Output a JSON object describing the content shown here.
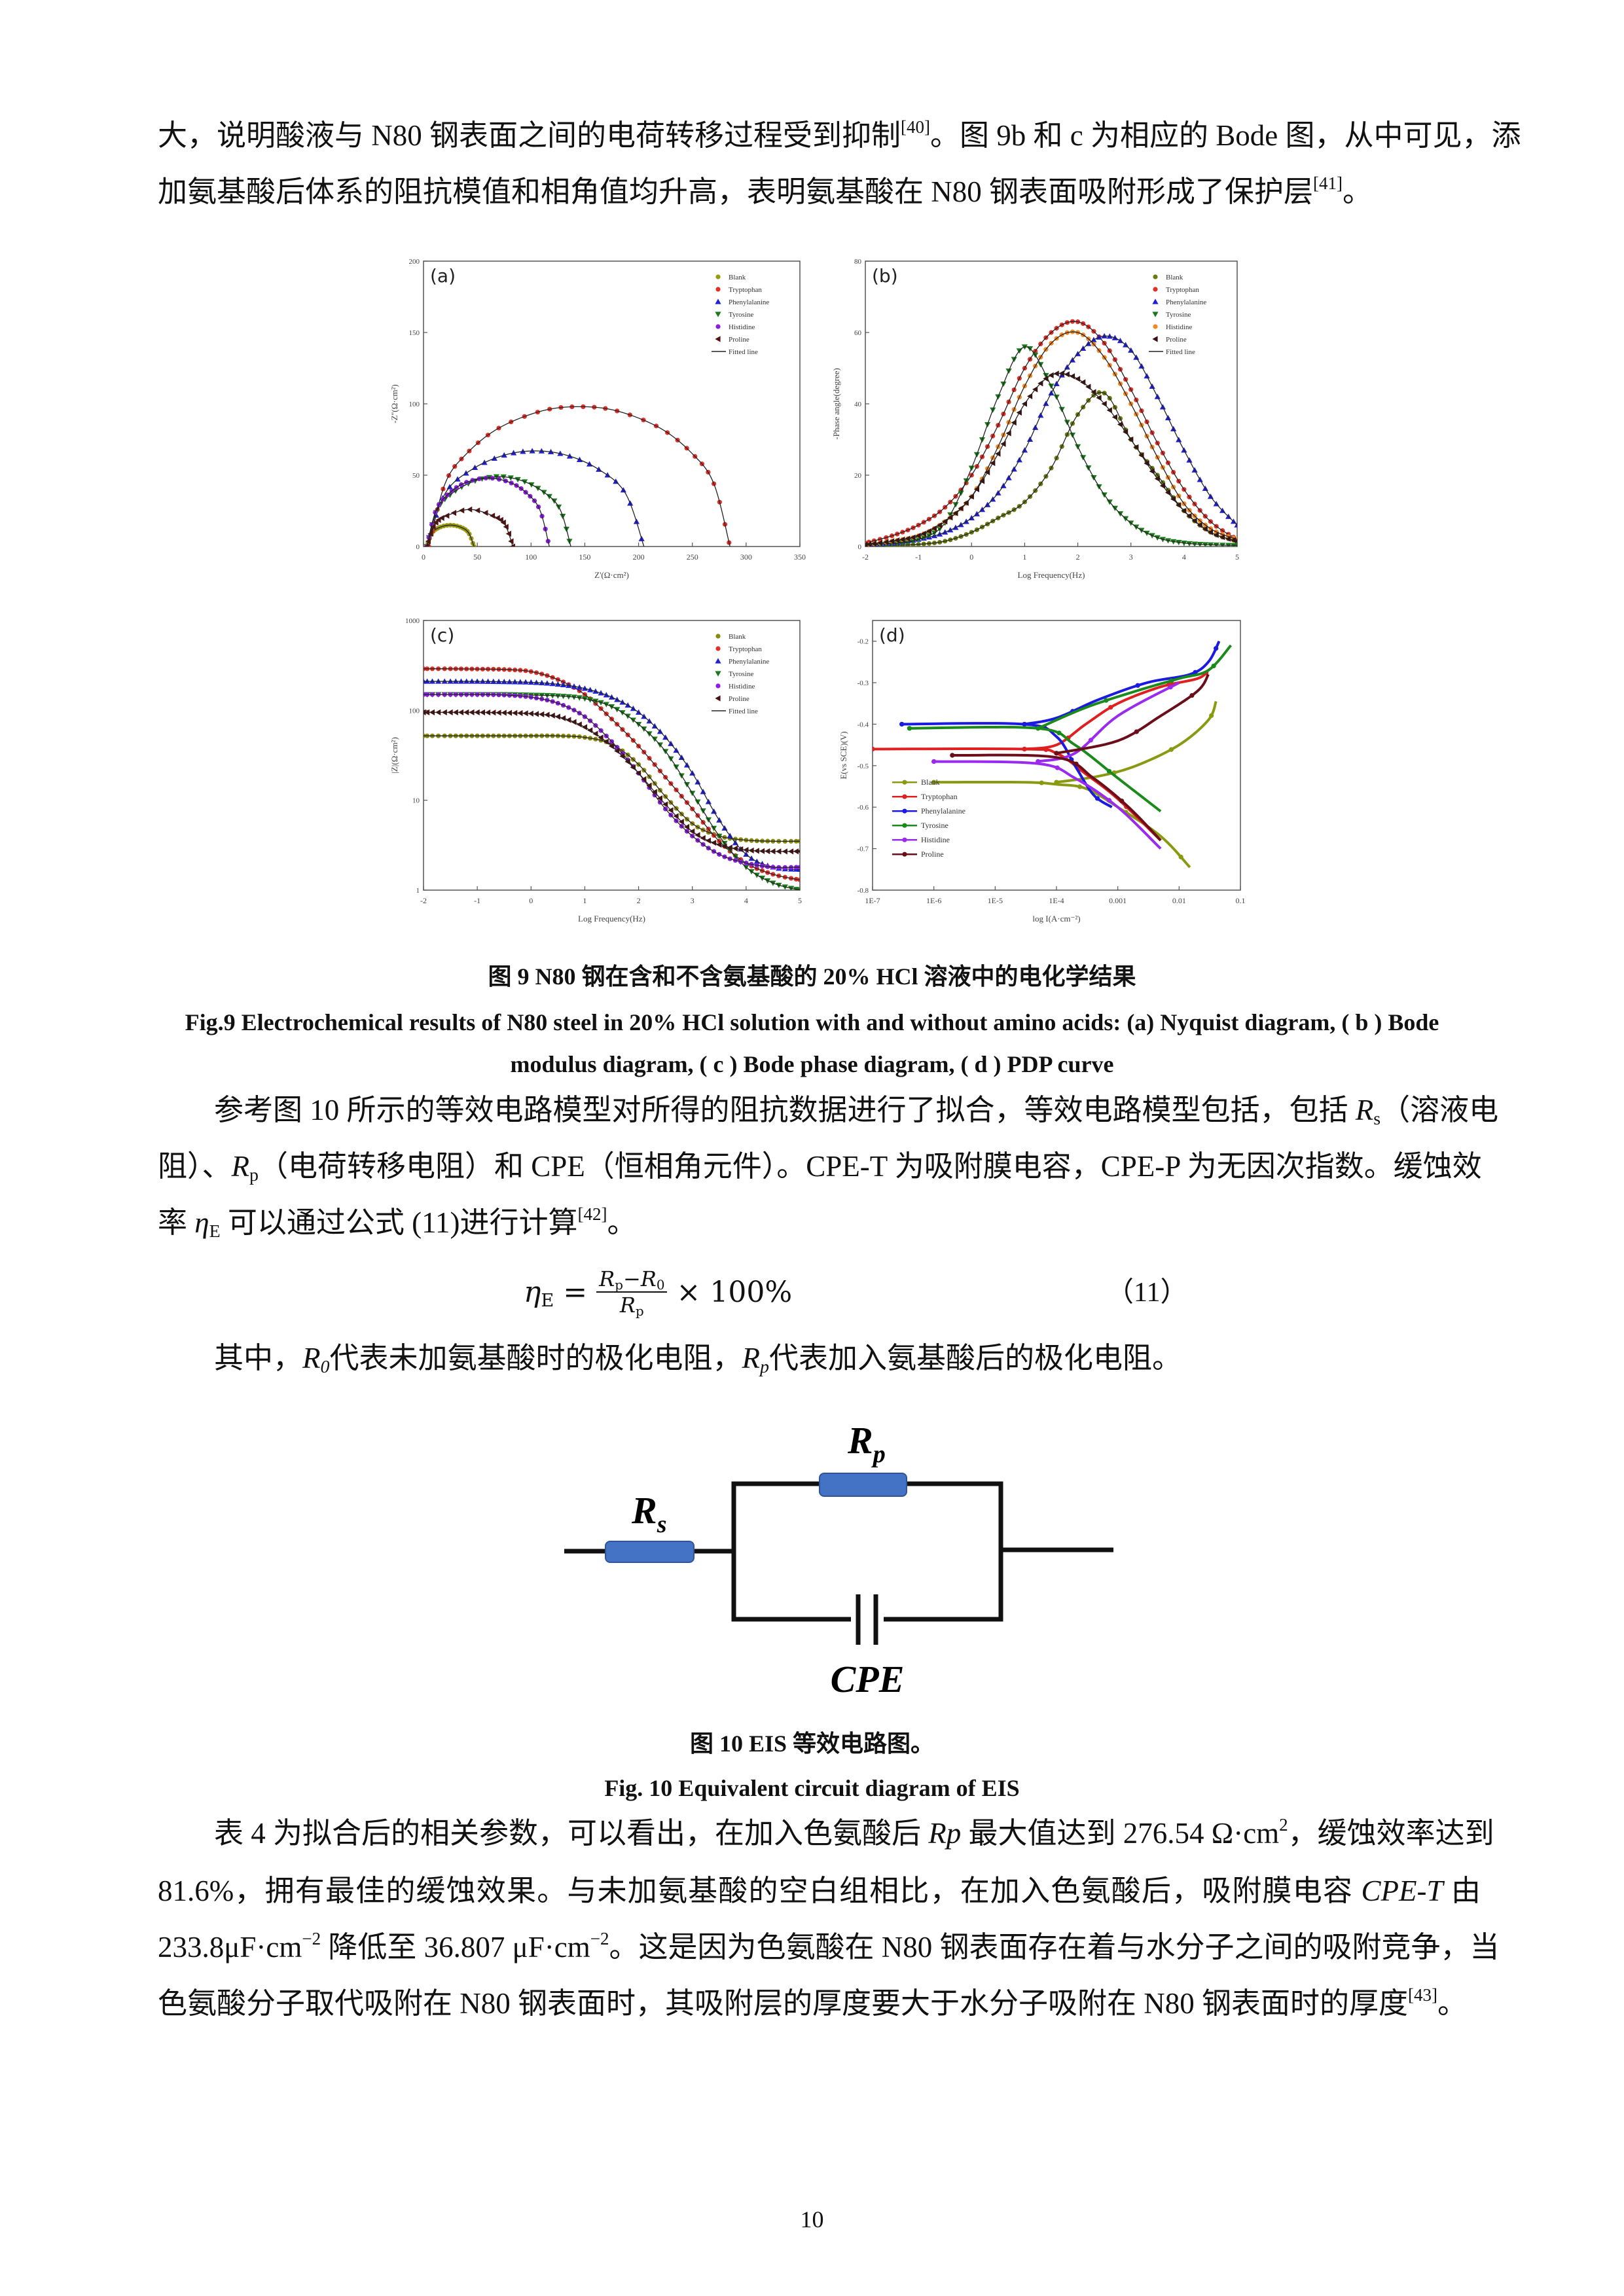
{
  "para1": {
    "l1": [
      "大，说明酸液与 N80 钢表面之间的电荷转移过程受到抑制",
      "[40]",
      "。图 9b 和 c 为相应的 Bode 图，从中可见，添"
    ],
    "l2": [
      "加氨基酸后体系的阻抗模值和相角值均升高，表明氨基酸在 N80 钢表面吸附形成了保护层",
      "[41]",
      "。"
    ]
  },
  "fig9": {
    "caption_cn": "图 9 N80 钢在含和不含氨基酸的 20% HCl 溶液中的电化学结果",
    "caption_en_1": "Fig.9 Electrochemical results of N80 steel in 20% HCl solution with and without amino acids: (a) Nyquist diagram, ( b ) Bode",
    "caption_en_2": "modulus diagram, ( c ) Bode phase diagram, ( d ) PDP curve"
  },
  "para2": {
    "l1": [
      "参考图 10 所示的等效电路模型对所得的阻抗数据进行了拟合，等效电路模型包括，包括 ",
      "R",
      "s",
      "（溶液电"
    ],
    "l2": [
      "阻）、",
      "R",
      "p",
      "（电荷转移电阻）和 CPE（恒相角元件）。CPE-T 为吸附膜电容，CPE-P 为无因次指数。缓蚀效"
    ],
    "l3": [
      "率 ",
      "η",
      "E",
      " 可以通过公式 (11)进行计算",
      "[42]",
      "。"
    ]
  },
  "equation": {
    "lhs": "η",
    "lhs_sub": "E",
    "eq": "=",
    "num_a": "R",
    "num_a_sub": "p",
    "minus": "−",
    "num_b": "R",
    "num_b_sub": "0",
    "den": "R",
    "den_sub": "p",
    "times": "× 100%",
    "number": "（11）"
  },
  "para3": [
    "其中，",
    "R",
    "0",
    "代表未加氨基酸时的极化电阻，",
    "R",
    "p",
    "代表加入氨基酸后的极化电阻。"
  ],
  "circuit": {
    "rs": "R",
    "rs_sub": "s",
    "rp": "R",
    "rp_sub": "p",
    "cpe": "CPE",
    "resistor_color": "#4472c4"
  },
  "fig10": {
    "caption_cn": "图 10 EIS 等效电路图。",
    "caption_en": "Fig. 10 Equivalent circuit diagram of EIS"
  },
  "para4": {
    "l1": [
      "表 4 为拟合后的相关参数，可以看出，在加入色氨酸后 ",
      "Rp",
      " 最大值达到 276.54 Ω·cm",
      "2",
      "，缓蚀效率达到"
    ],
    "l2": [
      "81.6%，拥有最佳的缓蚀效果。与未加氨基酸的空白组相比，在加入色氨酸后，吸附膜电容 ",
      "CPE-T",
      " 由"
    ],
    "l3": [
      "233.8μF·cm",
      "−2",
      " 降低至 36.807 μF·cm",
      "−2",
      "。这是因为色氨酸在 N80 钢表面存在着与水分子之间的吸附竞争，当"
    ],
    "l4": [
      "色氨酸分子取代吸附在 N80 钢表面时，其吸附层的厚度要大于水分子吸附在 N80 钢表面时的厚度",
      "[43]",
      "。"
    ]
  },
  "page_number": "10",
  "chart_data": [
    {
      "panel": "(a)",
      "type": "scatter",
      "xlabel": "Z'(Ω·cm²)",
      "ylabel": "-Z''(Ω·cm²)",
      "xlim": [
        0,
        350
      ],
      "ylim": [
        0,
        200
      ],
      "xscale": "linear",
      "yscale": "linear",
      "xticks": [
        0,
        50,
        100,
        150,
        200,
        250,
        300,
        350
      ],
      "xtick_labels": [
        "0",
        "50",
        "100",
        "150",
        "200",
        "250",
        "300",
        "350"
      ],
      "yticks": [
        0,
        50,
        100,
        150,
        200
      ],
      "ytick_labels": [
        "0",
        "50",
        "100",
        "150",
        "200"
      ],
      "legend_position": "top-right",
      "fit_label": "Fitted line",
      "series": [
        {
          "name": "Blank",
          "color": "#9a9a10",
          "points": [
            [
              3,
              0
            ],
            [
              8,
              9.5
            ],
            [
              15,
              13.4
            ],
            [
              25,
              15
            ],
            [
              35,
              13.4
            ],
            [
              42,
              9.5
            ],
            [
              47,
              0
            ]
          ]
        },
        {
          "name": "Tryptophan",
          "color": "#e0302a",
          "points": [
            [
              5,
              0
            ],
            [
              20,
              44
            ],
            [
              40,
              65
            ],
            [
              70,
              83
            ],
            [
              110,
              95
            ],
            [
              145,
              98
            ],
            [
              180,
              95
            ],
            [
              220,
              83
            ],
            [
              250,
              65
            ],
            [
              270,
              44
            ],
            [
              285,
              0
            ]
          ]
        },
        {
          "name": "Phenylalanine",
          "color": "#2020d8",
          "points": [
            [
              3,
              0
            ],
            [
              20,
              37
            ],
            [
              45,
              54
            ],
            [
              75,
              64
            ],
            [
              104,
              67
            ],
            [
              133,
              64
            ],
            [
              163,
              54
            ],
            [
              188,
              37
            ],
            [
              205,
              0
            ]
          ]
        },
        {
          "name": "Tyrosine",
          "color": "#1a7a1a",
          "points": [
            [
              3,
              0
            ],
            [
              13,
              26
            ],
            [
              28,
              38
            ],
            [
              48,
              46
            ],
            [
              70,
              49
            ],
            [
              92,
              46
            ],
            [
              112,
              38
            ],
            [
              127,
              26
            ],
            [
              137,
              0
            ]
          ]
        },
        {
          "name": "Histidine",
          "color": "#8a1ee0",
          "points": [
            [
              3,
              0
            ],
            [
              12,
              26
            ],
            [
              25,
              38
            ],
            [
              40,
              45
            ],
            [
              60,
              48
            ],
            [
              80,
              45
            ],
            [
              95,
              38
            ],
            [
              108,
              26
            ],
            [
              117,
              0
            ]
          ]
        },
        {
          "name": "Proline",
          "color": "#5a1010",
          "points": [
            [
              3,
              0
            ],
            [
              10,
              15
            ],
            [
              20,
              21
            ],
            [
              43,
              26
            ],
            [
              66,
              21
            ],
            [
              76,
              15
            ],
            [
              83,
              0
            ]
          ]
        }
      ]
    },
    {
      "panel": "(b)",
      "type": "scatter",
      "xlabel": "Log Frequency(Hz)",
      "ylabel": "-Phase angle(degree)",
      "xlim": [
        -2,
        5
      ],
      "ylim": [
        0,
        80
      ],
      "xscale": "linear",
      "yscale": "linear",
      "xticks": [
        -2,
        -1,
        0,
        1,
        2,
        3,
        4,
        5
      ],
      "xtick_labels": [
        "-2",
        "-1",
        "0",
        "1",
        "2",
        "3",
        "4",
        "5"
      ],
      "yticks": [
        0,
        20,
        40,
        60,
        80
      ],
      "ytick_labels": [
        "0",
        "20",
        "40",
        "60",
        "80"
      ],
      "legend_position": "top-right",
      "fit_label": "Fitted line",
      "x": [
        -2,
        -1.5,
        -1,
        -0.5,
        0,
        0.5,
        1,
        1.5,
        2,
        2.5,
        3,
        3.5,
        4,
        4.5,
        5
      ],
      "series": [
        {
          "name": "Blank",
          "color": "#6b7a10",
          "values": [
            0,
            0.3,
            0.6,
            1.5,
            4,
            8,
            12.5,
            22,
            37,
            43,
            30,
            20,
            10,
            4,
            1.5
          ]
        },
        {
          "name": "Tryptophan",
          "color": "#e0302a",
          "values": [
            1,
            3,
            6,
            11,
            20,
            34,
            50,
            60,
            63,
            57,
            44,
            29,
            16,
            7,
            2
          ]
        },
        {
          "name": "Phenylalanine",
          "color": "#2020d8",
          "values": [
            0.5,
            1,
            2,
            4,
            8,
            15,
            27,
            43,
            54,
            59,
            55,
            42,
            27,
            14,
            6
          ]
        },
        {
          "name": "Tyrosine",
          "color": "#1a7a1a",
          "values": [
            0.3,
            0.8,
            2,
            6.6,
            22,
            42,
            56,
            45,
            28,
            14.5,
            6.6,
            2.5,
            1,
            0.5,
            0.3
          ]
        },
        {
          "name": "Histidine",
          "color": "#f08a20",
          "values": [
            0.5,
            1.5,
            3,
            7,
            14,
            28,
            45,
            57,
            60,
            53,
            40,
            25,
            12,
            5,
            2
          ]
        },
        {
          "name": "Proline",
          "color": "#3a1010",
          "values": [
            0.5,
            1.5,
            3,
            7,
            14,
            26,
            40,
            48,
            47,
            40,
            30,
            19,
            10,
            4,
            1.5
          ]
        }
      ]
    },
    {
      "panel": "(c)",
      "type": "scatter",
      "xlabel": "Log Frequency(Hz)",
      "ylabel": "|Z|(Ω·cm²)",
      "xlim": [
        -2,
        5
      ],
      "ylim": [
        1,
        1000
      ],
      "xscale": "linear",
      "yscale": "log",
      "xticks": [
        -2,
        -1,
        0,
        1,
        2,
        3,
        4,
        5
      ],
      "xtick_labels": [
        "-2",
        "-1",
        "0",
        "1",
        "2",
        "3",
        "4",
        "5"
      ],
      "yticks": [
        1,
        10,
        100,
        1000
      ],
      "ytick_labels": [
        "1",
        "10",
        "100",
        "1000"
      ],
      "legend_position": "top-right",
      "fit_label": "Fitted line",
      "x": [
        -2,
        -1.5,
        -1,
        -0.5,
        0,
        0.5,
        1,
        1.5,
        2,
        2.5,
        3,
        3.5,
        4,
        4.5,
        5
      ],
      "series": [
        {
          "name": "Blank",
          "color": "#8a8a10",
          "values": [
            52,
            52,
            52,
            52,
            52,
            52,
            50,
            42,
            25,
            11,
            5.5,
            4,
            3.6,
            3.5,
            3.5
          ]
        },
        {
          "name": "Tryptophan",
          "color": "#e0302a",
          "values": [
            290,
            290,
            288,
            285,
            270,
            220,
            150,
            80,
            40,
            18,
            8,
            3.5,
            2,
            1.5,
            1.3
          ]
        },
        {
          "name": "Phenylalanine",
          "color": "#2020d8",
          "values": [
            210,
            210,
            210,
            208,
            205,
            195,
            175,
            140,
            95,
            50,
            20,
            6,
            2.5,
            1.8,
            1.7
          ]
        },
        {
          "name": "Tyrosine",
          "color": "#1a7a1a",
          "values": [
            150,
            150,
            150,
            150,
            148,
            145,
            135,
            110,
            70,
            35,
            12,
            4,
            1.8,
            1.2,
            1.0
          ]
        },
        {
          "name": "Histidine",
          "color": "#8a1ee0",
          "values": [
            150,
            150,
            150,
            148,
            140,
            120,
            85,
            45,
            20,
            8,
            4,
            2.5,
            2,
            1.8,
            1.8
          ]
        },
        {
          "name": "Proline",
          "color": "#4a1010",
          "values": [
            95,
            95,
            95,
            94,
            92,
            85,
            65,
            40,
            20,
            9,
            4.5,
            3.2,
            2.8,
            2.7,
            2.7
          ]
        }
      ]
    },
    {
      "panel": "(d)",
      "type": "line",
      "xlabel": "log I(A·cm⁻²)",
      "ylabel": "E(vs SCE)(V)",
      "xlim": [
        1e-07,
        0.1
      ],
      "ylim": [
        -0.8,
        -0.15
      ],
      "xscale": "log",
      "yscale": "linear",
      "xticks": [
        1e-07,
        1e-06,
        1e-05,
        0.0001,
        0.001,
        0.01,
        0.1
      ],
      "xtick_labels": [
        "1E-7",
        "1E-6",
        "1E-5",
        "1E-4",
        "0.001",
        "0.01",
        "0.1"
      ],
      "yticks": [
        -0.8,
        -0.7,
        -0.6,
        -0.5,
        -0.4,
        -0.3,
        -0.2
      ],
      "ytick_labels": [
        "-0.8",
        "-0.7",
        "-0.6",
        "-0.5",
        "-0.4",
        "-0.3",
        "-0.2"
      ],
      "legend_position": "bottom-left",
      "series": [
        {
          "name": "Blank",
          "color": "#8a9a10",
          "cathodic": [
            [
              1e-06,
              -0.54
            ],
            [
              3e-05,
              -0.54
            ],
            [
              0.0001,
              -0.545
            ],
            [
              0.0003,
              -0.555
            ],
            [
              0.001,
              -0.6
            ],
            [
              0.005,
              -0.67
            ],
            [
              0.015,
              -0.745
            ]
          ],
          "anodic": [
            [
              0.0001,
              -0.54
            ],
            [
              0.0005,
              -0.525
            ],
            [
              0.002,
              -0.5
            ],
            [
              0.01,
              -0.45
            ],
            [
              0.03,
              -0.39
            ],
            [
              0.04,
              -0.345
            ]
          ]
        },
        {
          "name": "Tryptophan",
          "color": "#e02020",
          "cathodic": [
            [
              1e-07,
              -0.46
            ],
            [
              3e-05,
              -0.46
            ],
            [
              0.0001,
              -0.47
            ],
            [
              0.0003,
              -0.52
            ],
            [
              0.001,
              -0.58
            ],
            [
              0.005,
              -0.68
            ]
          ],
          "anodic": [
            [
              3e-05,
              -0.46
            ],
            [
              0.0001,
              -0.45
            ],
            [
              0.0003,
              -0.4
            ],
            [
              0.001,
              -0.35
            ],
            [
              0.005,
              -0.31
            ],
            [
              0.02,
              -0.29
            ],
            [
              0.03,
              -0.27
            ]
          ]
        },
        {
          "name": "Phenylalanine",
          "color": "#1a1ae0",
          "cathodic": [
            [
              3e-07,
              -0.4
            ],
            [
              3e-05,
              -0.4
            ],
            [
              0.0001,
              -0.43
            ],
            [
              0.0002,
              -0.5
            ],
            [
              0.0004,
              -0.57
            ],
            [
              0.0008,
              -0.6
            ]
          ],
          "anodic": [
            [
              3e-05,
              -0.4
            ],
            [
              0.0001,
              -0.385
            ],
            [
              0.0005,
              -0.34
            ],
            [
              0.003,
              -0.3
            ],
            [
              0.015,
              -0.28
            ],
            [
              0.03,
              -0.25
            ],
            [
              0.045,
              -0.2
            ]
          ]
        },
        {
          "name": "Tyrosine",
          "color": "#1a8a1a",
          "cathodic": [
            [
              4e-07,
              -0.41
            ],
            [
              5e-05,
              -0.41
            ],
            [
              0.0002,
              -0.45
            ],
            [
              0.001,
              -0.53
            ],
            [
              0.005,
              -0.61
            ]
          ],
          "anodic": [
            [
              5e-05,
              -0.41
            ],
            [
              0.0003,
              -0.36
            ],
            [
              0.002,
              -0.32
            ],
            [
              0.01,
              -0.29
            ],
            [
              0.03,
              -0.27
            ],
            [
              0.07,
              -0.21
            ]
          ]
        },
        {
          "name": "Histidine",
          "color": "#9a2af0",
          "cathodic": [
            [
              1e-06,
              -0.49
            ],
            [
              5e-05,
              -0.495
            ],
            [
              0.0002,
              -0.53
            ],
            [
              0.001,
              -0.6
            ],
            [
              0.005,
              -0.7
            ]
          ],
          "anodic": [
            [
              5e-05,
              -0.49
            ],
            [
              0.0002,
              -0.47
            ],
            [
              0.001,
              -0.38
            ],
            [
              0.01,
              -0.3
            ]
          ]
        },
        {
          "name": "Proline",
          "color": "#6a0f1a",
          "cathodic": [
            [
              2e-06,
              -0.475
            ],
            [
              0.0001,
              -0.48
            ],
            [
              0.0004,
              -0.53
            ],
            [
              0.0015,
              -0.6
            ],
            [
              0.005,
              -0.68
            ]
          ],
          "anodic": [
            [
              0.0001,
              -0.47
            ],
            [
              0.001,
              -0.44
            ],
            [
              0.005,
              -0.38
            ],
            [
              0.02,
              -0.32
            ],
            [
              0.03,
              -0.28
            ]
          ]
        }
      ]
    }
  ]
}
